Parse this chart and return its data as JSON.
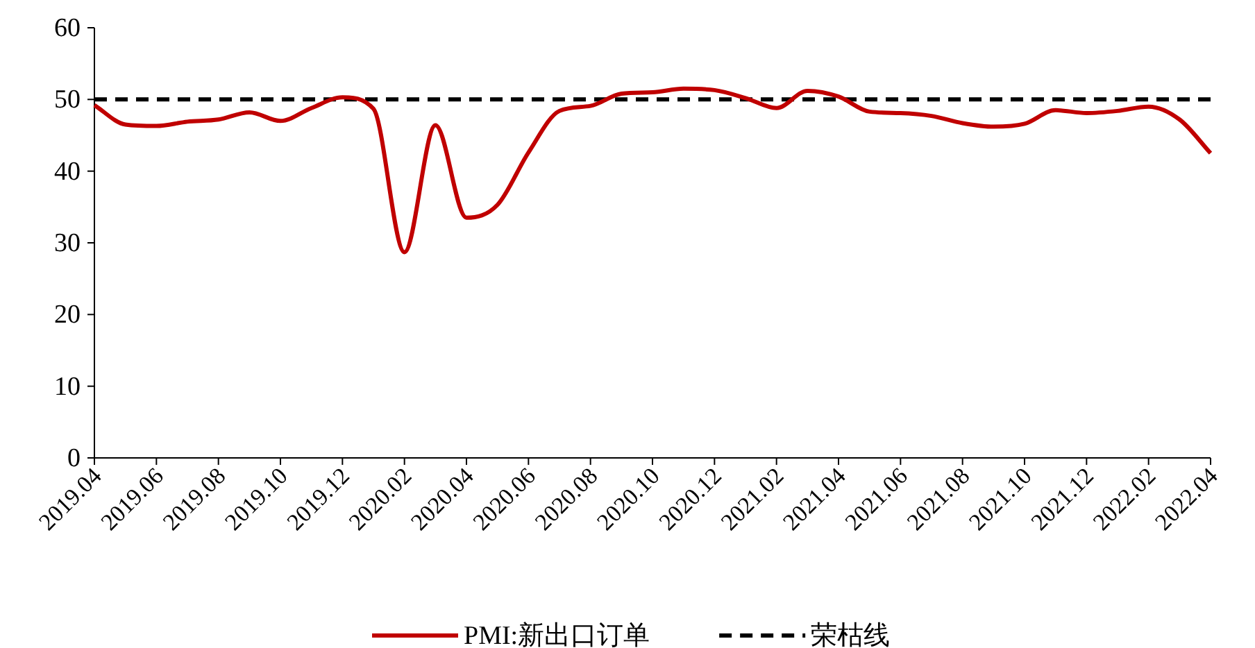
{
  "chart_data": {
    "type": "line",
    "categories": [
      "2019.04",
      null,
      "2019.06",
      null,
      "2019.08",
      null,
      "2019.10",
      null,
      "2019.12",
      null,
      "2020.02",
      null,
      "2020.04",
      null,
      "2020.06",
      null,
      "2020.08",
      null,
      "2020.10",
      null,
      "2020.12",
      null,
      "2021.02",
      null,
      "2021.04",
      null,
      "2021.06",
      null,
      "2021.08",
      null,
      "2021.10",
      null,
      "2021.12",
      null,
      "2022.02",
      null,
      "2022.04"
    ],
    "series": [
      {
        "name": "PMI:新出口订单",
        "color": "#c00000",
        "values": [
          49.2,
          46.5,
          46.3,
          46.9,
          47.2,
          48.2,
          47.0,
          48.8,
          50.3,
          48.7,
          28.7,
          46.4,
          33.5,
          35.3,
          42.6,
          48.4,
          49.1,
          50.8,
          51.0,
          51.5,
          51.3,
          50.2,
          48.8,
          51.2,
          50.4,
          48.3,
          48.1,
          47.7,
          46.7,
          46.2,
          46.6,
          48.5,
          48.1,
          48.4,
          49.0,
          47.2,
          42.5
        ]
      }
    ],
    "ref_lines": [
      {
        "axis": "y",
        "value": 50,
        "label": "荣枯线",
        "color": "#000000",
        "line_style": "dashed"
      }
    ],
    "ylim": [
      0,
      60
    ],
    "yticks": [
      0,
      10,
      20,
      30,
      40,
      50,
      60
    ],
    "legend": "bottom",
    "grid": false,
    "marker": "none",
    "line_style": "solid"
  }
}
